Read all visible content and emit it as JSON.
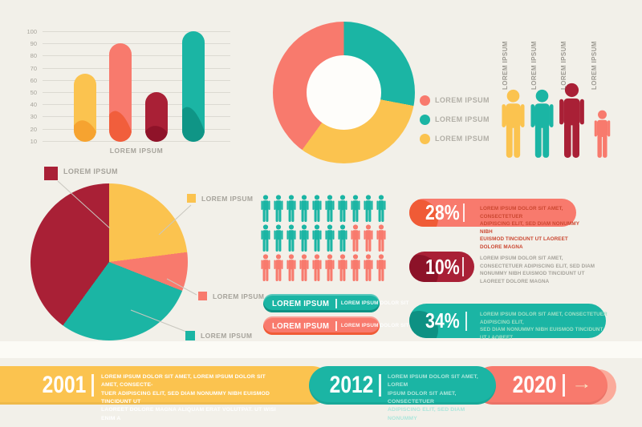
{
  "colors": {
    "background": "#F2F0E9",
    "divider_band": "#FCFBF6",
    "yellow": "#FBC34F",
    "yellow_dark": "#F5A02C",
    "coral": "#F87A6D",
    "coral_dark": "#F05B36",
    "coral_light": "#FBAB9B",
    "teal": "#1BB5A4",
    "teal_dark": "#0E9183",
    "dark_red": "#A92036",
    "dark_red_dark": "#8C1228",
    "gray_text": "#A6A39B",
    "grid_line": "#DCDAD2",
    "leader_line": "#C9C7BF",
    "donut_hole": "#FEFDFA"
  },
  "chart_data": [
    {
      "id": "rounded-bar-chart",
      "type": "bar",
      "values": [
        65,
        90,
        50,
        100
      ],
      "bar_colors": [
        "#FBC34F",
        "#F87A6D",
        "#A92036",
        "#1BB5A4"
      ],
      "bar_colors_dark": [
        "#F5A02C",
        "#F05B36",
        "#8C1228",
        "#0E9183"
      ],
      "ylim": [
        10,
        100
      ],
      "yticks": [
        100,
        90,
        80,
        70,
        60,
        50,
        40,
        30,
        20,
        10
      ],
      "grid": true,
      "baseline": 10,
      "xlabel": "LOREM IPSUM"
    },
    {
      "id": "donut-chart",
      "type": "pie",
      "donut": true,
      "start": "12 o'clock, clockwise",
      "values": [
        28,
        32,
        40
      ],
      "colors": [
        "#1BB5A4",
        "#FBC34F",
        "#F87A6D"
      ],
      "legend_position": "right",
      "legend": [
        {
          "label": "LOREM IPSUM",
          "color": "#F87A6D"
        },
        {
          "label": "LOREM IPSUM",
          "color": "#1BB5A4"
        },
        {
          "label": "LOREM IPSUM",
          "color": "#FBC34F"
        }
      ]
    },
    {
      "id": "family-figures",
      "type": "pictogram",
      "figures": [
        {
          "label": "LOREM IPSUM",
          "color": "#FBC34F",
          "size": "tall"
        },
        {
          "label": "LOREM IPSUM",
          "color": "#1BB5A4",
          "size": "tall"
        },
        {
          "label": "LOREM IPSUM",
          "color": "#A92036",
          "size": "tallest"
        },
        {
          "label": "LOREM IPSUM",
          "color": "#F87A6D",
          "size": "short"
        }
      ]
    },
    {
      "id": "pie-chart",
      "type": "pie",
      "start": "12 o'clock, clockwise",
      "values": [
        23,
        8,
        29,
        40
      ],
      "colors": [
        "#FBC34F",
        "#F87A6D",
        "#1BB5A4",
        "#A92036"
      ],
      "legend": [
        {
          "label": "LOREM IPSUM",
          "color": "#A92036"
        },
        {
          "label": "LOREM IPSUM",
          "color": "#FBC34F"
        },
        {
          "label": "LOREM IPSUM",
          "color": "#F87A6D"
        },
        {
          "label": "LOREM IPSUM",
          "color": "#1BB5A4"
        }
      ]
    },
    {
      "id": "population-pictograph",
      "type": "pictogram",
      "icons_per_row": 10,
      "rows": [
        {
          "teal": 10,
          "coral": 0
        },
        {
          "teal": 7,
          "coral": 3
        },
        {
          "teal": 0,
          "coral": 10
        }
      ],
      "teal_color": "#1BB5A4",
      "coral_color": "#F87A6D",
      "bars": [
        {
          "title": "LOREM IPSUM",
          "subtitle": "LOREM IPSUM DOLOR SIT",
          "color": "#1BB5A4"
        },
        {
          "title": "LOREM IPSUM",
          "subtitle": "LOREM IPSUM DOLOR SIT",
          "color": "#F87A6D"
        }
      ]
    },
    {
      "id": "stat-pills",
      "type": "bar",
      "items": [
        {
          "value": 28,
          "value_label": "28%",
          "color": "#F87A6D",
          "color_dark": "#F05B36",
          "text_inside": true,
          "text": "LOREM IPSUM DOLOR SIT AMET, CONSECTETUER\nADIPISCING ELIT, SED DIAM NONUMMY NIBH\nEUISMOD TINCIDUNT UT LAOREET DOLORE MAGNA"
        },
        {
          "value": 10,
          "value_label": "10%",
          "color": "#A92036",
          "color_dark": "#8C1228",
          "text_inside": false,
          "text": "LOREM IPSUM DOLOR SIT AMET,\nCONSECTETUER ADIPISCING ELIT, SED DIAM\nNONUMMY NIBH EUISMOD TINCIDUNT UT\nLAOREET DOLORE MAGNA"
        },
        {
          "value": 34,
          "value_label": "34%",
          "color": "#1BB5A4",
          "color_dark": "#0E9183",
          "text_inside": true,
          "text": "LOREM IPSUM DOLOR SIT AMET, CONSECTETUER ADIPISCING ELIT,\nSED DIAM NONUMMY NIBH EUISMOD TINCIDUNT UT LAOREET\nDOLORE MAGNA"
        }
      ]
    },
    {
      "id": "timeline",
      "type": "timeline",
      "items": [
        {
          "year": "2001",
          "color": "#FBC34F",
          "text": "LOREM IPSUM DOLOR SIT AMET, LOREM IPSUM DOLOR SIT AMET, CONSECTE-\nTUER ADIPISCING ELIT, SED DIAM NONUMMY NIBH EUISMOD TINCIDUNT UT\nLAOREET DOLORE MAGNA ALIQUAM ERAT VOLUTPAT. UT WISI ENIM A"
        },
        {
          "year": "2012",
          "color": "#1BB5A4",
          "text": "LOREM IPSUM DOLOR SIT AMET, LOREM\nIPSUM DOLOR SIT AMET, CONSECTETUER\nADIPISCING ELIT, SED DIAM NONUMMY"
        },
        {
          "year": "2020",
          "color": "#F87A6D",
          "color_light": "#FBAB9B",
          "arrow": "→"
        }
      ]
    }
  ]
}
